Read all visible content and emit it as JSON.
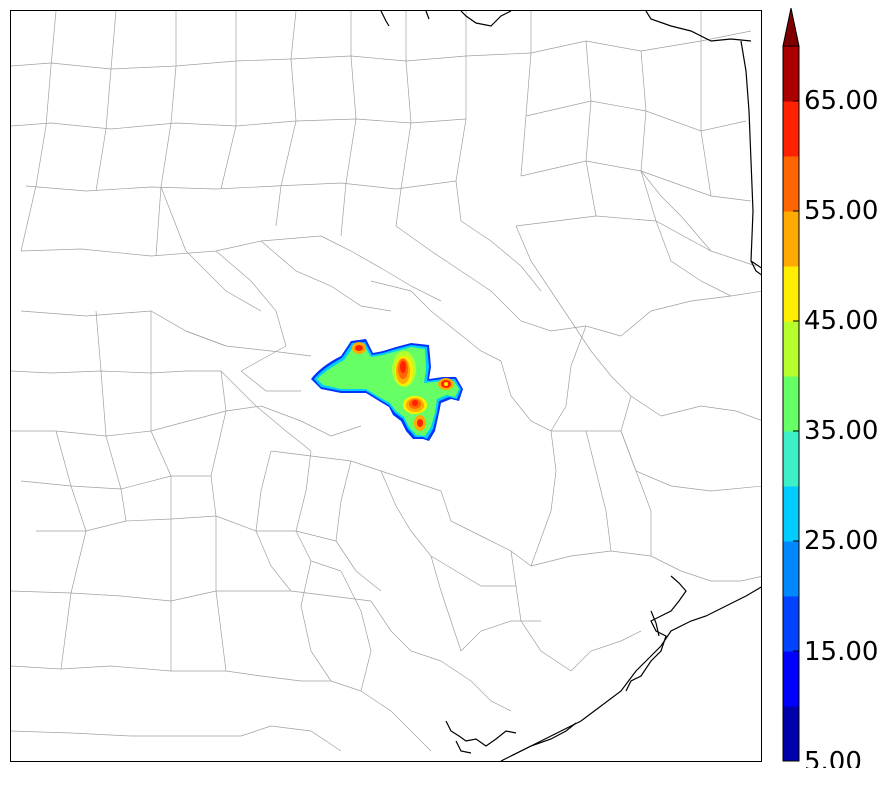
{
  "colorbar": {
    "tick_labels": [
      "5.00",
      "15.00",
      "25.00",
      "35.00",
      "45.00",
      "55.00",
      "65.00"
    ],
    "levels": [
      5,
      10,
      15,
      20,
      25,
      30,
      35,
      40,
      45,
      50,
      55,
      60,
      65,
      70
    ],
    "colors": [
      "#0000aa",
      "#0000ff",
      "#0044ff",
      "#0088ff",
      "#00ccff",
      "#3ef0c8",
      "#66ff66",
      "#b6ff2c",
      "#ffee00",
      "#ffaa00",
      "#ff6600",
      "#ff2200",
      "#aa0000"
    ],
    "extend": "max"
  },
  "legend_colors": {
    "county_lines": "#9a9a9a",
    "state_and_coast": "#000000"
  }
}
